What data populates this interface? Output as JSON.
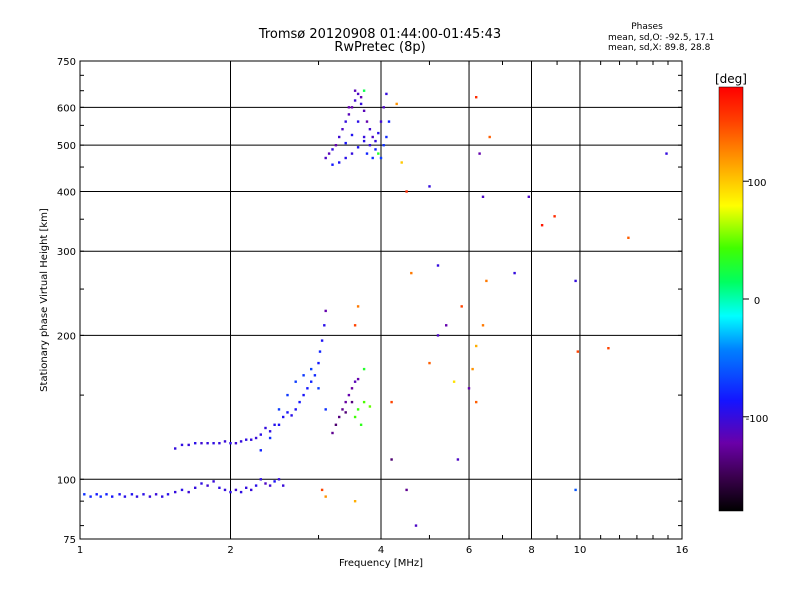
{
  "header": {
    "title_line1": "Tromsø 20120908 01:44:00-01:45:43",
    "title_line2": "RwPretec (8p)",
    "phases_label": "Phases",
    "phases_o": "mean, sd,O: -92.5, 17.1",
    "phases_x": "mean, sd,X:  89.8, 28.8"
  },
  "chart_data": {
    "type": "scatter",
    "xlabel": "Frequency [MHz]",
    "ylabel": "Stationary phase Virtual Height [km]",
    "x_scale": "log",
    "y_scale": "log",
    "xlim": [
      1,
      16
    ],
    "ylim": [
      75,
      750
    ],
    "x_ticks": [
      1,
      2,
      4,
      6,
      8,
      10,
      16
    ],
    "x_tick_labels": [
      "1",
      "2",
      "4",
      "6",
      "8",
      "10",
      "16"
    ],
    "y_ticks": [
      75,
      100,
      200,
      300,
      400,
      500,
      600,
      750
    ],
    "y_tick_labels": [
      "75",
      "100",
      "200",
      "300",
      "400",
      "500",
      "600",
      "750"
    ],
    "grid": true,
    "colorbar": {
      "label": "[deg]",
      "range": [
        -180,
        180
      ],
      "ticks": [
        100,
        0,
        -100
      ],
      "tick_labels": [
        "100",
        "0",
        "-100"
      ]
    },
    "series": [
      {
        "points": [
          [
            1.02,
            93,
            -75
          ],
          [
            1.05,
            92,
            -80
          ],
          [
            1.08,
            93,
            -85
          ],
          [
            1.1,
            92,
            -78
          ],
          [
            1.13,
            93,
            -82
          ],
          [
            1.16,
            92,
            -88
          ],
          [
            1.2,
            93,
            -90
          ],
          [
            1.23,
            92,
            -95
          ],
          [
            1.27,
            93,
            -92
          ],
          [
            1.3,
            92,
            -98
          ],
          [
            1.34,
            93,
            -96
          ],
          [
            1.38,
            92,
            -100
          ],
          [
            1.42,
            93,
            -102
          ],
          [
            1.46,
            92,
            -98
          ],
          [
            1.5,
            93,
            -95
          ],
          [
            1.55,
            94,
            -100
          ],
          [
            1.6,
            95,
            -96
          ],
          [
            1.65,
            94,
            -104
          ],
          [
            1.7,
            96,
            -100
          ],
          [
            1.75,
            98,
            -98
          ],
          [
            1.8,
            97,
            -105
          ],
          [
            1.85,
            99,
            -102
          ],
          [
            1.9,
            96,
            -98
          ],
          [
            1.95,
            95,
            -100
          ],
          [
            2.0,
            94,
            -96
          ],
          [
            2.05,
            95,
            -104
          ],
          [
            2.1,
            94,
            -98
          ],
          [
            2.15,
            96,
            -100
          ],
          [
            2.2,
            95,
            -102
          ],
          [
            2.25,
            97,
            -95
          ],
          [
            2.3,
            100,
            -98
          ],
          [
            2.35,
            98,
            -110
          ],
          [
            2.4,
            97,
            -105
          ],
          [
            2.45,
            99,
            -90
          ],
          [
            2.5,
            100,
            -100
          ],
          [
            2.55,
            97,
            -102
          ],
          [
            1.55,
            116,
            -100
          ],
          [
            1.6,
            118,
            -98
          ],
          [
            1.65,
            118,
            -102
          ],
          [
            1.7,
            119,
            -96
          ],
          [
            1.75,
            119,
            -104
          ],
          [
            1.8,
            119,
            -100
          ],
          [
            1.85,
            119,
            -98
          ],
          [
            1.9,
            119,
            -100
          ],
          [
            1.95,
            120,
            -102
          ],
          [
            2.0,
            119,
            -96
          ],
          [
            2.05,
            119,
            -104
          ],
          [
            2.1,
            120,
            -100
          ],
          [
            2.15,
            121,
            -98
          ],
          [
            2.2,
            121,
            -100
          ],
          [
            2.25,
            122,
            -102
          ],
          [
            2.3,
            124,
            -96
          ],
          [
            2.35,
            128,
            -100
          ],
          [
            2.4,
            126,
            -98
          ],
          [
            2.45,
            130,
            -94
          ],
          [
            2.5,
            130,
            -90
          ],
          [
            2.55,
            135,
            -92
          ],
          [
            2.6,
            138,
            -88
          ],
          [
            2.65,
            136,
            -95
          ],
          [
            2.7,
            140,
            -90
          ],
          [
            2.75,
            145,
            -86
          ],
          [
            2.8,
            150,
            -88
          ],
          [
            2.85,
            155,
            -85
          ],
          [
            2.9,
            160,
            -80
          ],
          [
            2.95,
            165,
            -78
          ],
          [
            3.0,
            175,
            -85
          ],
          [
            3.02,
            185,
            -80
          ],
          [
            3.05,
            195,
            -90
          ],
          [
            3.08,
            210,
            -95
          ],
          [
            3.1,
            225,
            -120
          ],
          [
            2.3,
            115,
            -80
          ],
          [
            2.4,
            122,
            -75
          ],
          [
            2.5,
            140,
            -70
          ],
          [
            2.6,
            150,
            -72
          ],
          [
            2.7,
            160,
            -70
          ],
          [
            2.8,
            165,
            -72
          ],
          [
            2.9,
            170,
            -68
          ],
          [
            3.0,
            155,
            -70
          ],
          [
            3.1,
            140,
            -75
          ],
          [
            3.2,
            125,
            -130
          ],
          [
            3.25,
            130,
            -140
          ],
          [
            3.3,
            135,
            -135
          ],
          [
            3.35,
            140,
            -130
          ],
          [
            3.4,
            145,
            -125
          ],
          [
            3.45,
            150,
            -120
          ],
          [
            3.5,
            155,
            -125
          ],
          [
            3.55,
            160,
            -115
          ],
          [
            3.6,
            162,
            -120
          ],
          [
            3.5,
            145,
            -135
          ],
          [
            3.4,
            138,
            -138
          ],
          [
            3.6,
            140,
            40
          ],
          [
            3.7,
            145,
            45
          ],
          [
            3.8,
            142,
            50
          ],
          [
            3.65,
            130,
            35
          ],
          [
            3.55,
            135,
            42
          ],
          [
            3.7,
            170,
            30
          ],
          [
            3.6,
            230,
            130
          ],
          [
            3.55,
            210,
            150
          ],
          [
            4.2,
            145,
            150
          ],
          [
            4.7,
            80,
            -110
          ],
          [
            4.2,
            110,
            -140
          ],
          [
            4.5,
            95,
            -130
          ],
          [
            3.1,
            470,
            -110
          ],
          [
            3.15,
            480,
            -115
          ],
          [
            3.2,
            490,
            -100
          ],
          [
            3.25,
            500,
            -120
          ],
          [
            3.3,
            520,
            -105
          ],
          [
            3.35,
            540,
            -110
          ],
          [
            3.4,
            560,
            -100
          ],
          [
            3.45,
            580,
            -115
          ],
          [
            3.5,
            600,
            -120
          ],
          [
            3.55,
            620,
            -105
          ],
          [
            3.6,
            640,
            -110
          ],
          [
            3.65,
            610,
            -100
          ],
          [
            3.7,
            590,
            -115
          ],
          [
            3.75,
            560,
            -120
          ],
          [
            3.8,
            540,
            -105
          ],
          [
            3.85,
            520,
            -110
          ],
          [
            3.9,
            510,
            -100
          ],
          [
            3.95,
            530,
            -95
          ],
          [
            4.0,
            560,
            -105
          ],
          [
            4.05,
            600,
            -110
          ],
          [
            4.1,
            640,
            -100
          ],
          [
            3.3,
            460,
            -90
          ],
          [
            3.4,
            470,
            -95
          ],
          [
            3.5,
            480,
            -100
          ],
          [
            3.6,
            495,
            -90
          ],
          [
            3.7,
            510,
            -95
          ],
          [
            3.8,
            500,
            -100
          ],
          [
            3.2,
            455,
            -85
          ],
          [
            3.4,
            505,
            -88
          ],
          [
            3.5,
            525,
            -92
          ],
          [
            3.6,
            560,
            -96
          ],
          [
            3.7,
            520,
            -100
          ],
          [
            3.75,
            480,
            -80
          ],
          [
            3.85,
            470,
            -75
          ],
          [
            3.9,
            490,
            -82
          ],
          [
            4.0,
            470,
            -70
          ],
          [
            4.05,
            500,
            -75
          ],
          [
            4.1,
            520,
            -78
          ],
          [
            4.15,
            560,
            -82
          ],
          [
            3.45,
            600,
            -120
          ],
          [
            3.55,
            650,
            -115
          ],
          [
            3.65,
            630,
            -118
          ],
          [
            3.7,
            650,
            20
          ],
          [
            3.95,
            480,
            30
          ],
          [
            4.3,
            610,
            120
          ],
          [
            4.4,
            460,
            100
          ],
          [
            4.5,
            400,
            160
          ],
          [
            4.6,
            270,
            130
          ],
          [
            5.0,
            410,
            -100
          ],
          [
            5.2,
            280,
            -100
          ],
          [
            5.2,
            200,
            -110
          ],
          [
            5.4,
            210,
            -120
          ],
          [
            5.8,
            230,
            150
          ],
          [
            6.2,
            630,
            160
          ],
          [
            6.3,
            480,
            -120
          ],
          [
            6.4,
            390,
            -110
          ],
          [
            6.5,
            260,
            130
          ],
          [
            6.6,
            520,
            140
          ],
          [
            6.4,
            210,
            130
          ],
          [
            6.2,
            190,
            110
          ],
          [
            6.1,
            170,
            120
          ],
          [
            6.2,
            145,
            140
          ],
          [
            7.4,
            270,
            -100
          ],
          [
            7.9,
            390,
            -110
          ],
          [
            8.4,
            340,
            170
          ],
          [
            8.9,
            355,
            160
          ],
          [
            9.8,
            260,
            -100
          ],
          [
            9.9,
            185,
            150
          ],
          [
            9.8,
            95,
            -60
          ],
          [
            11.4,
            188,
            150
          ],
          [
            12.5,
            320,
            140
          ],
          [
            14.9,
            480,
            -100
          ],
          [
            5.7,
            110,
            -110
          ],
          [
            6.0,
            155,
            -120
          ],
          [
            5.6,
            160,
            90
          ],
          [
            3.05,
            95,
            150
          ],
          [
            3.1,
            92,
            120
          ],
          [
            3.55,
            90,
            110
          ],
          [
            5.0,
            175,
            140
          ]
        ]
      }
    ]
  }
}
